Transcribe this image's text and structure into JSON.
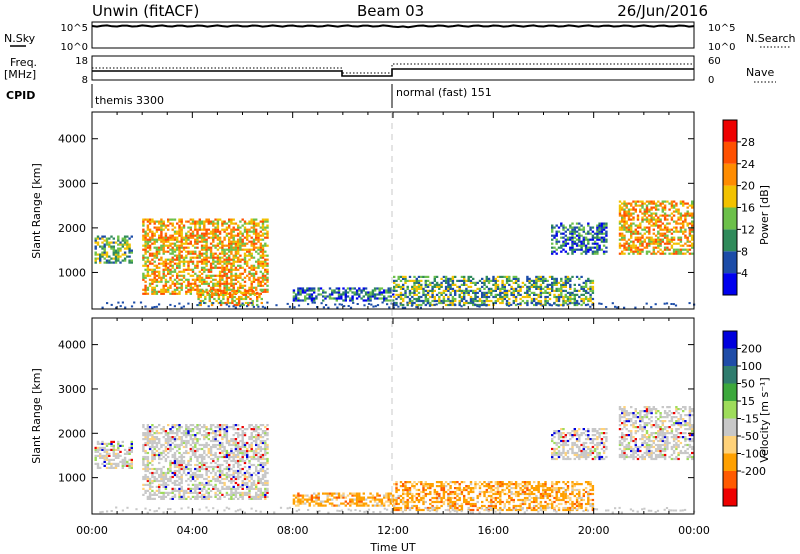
{
  "header": {
    "title": "Unwin (fitACF)",
    "beam": "Beam 03",
    "date": "26/Jun/2016"
  },
  "strip_panels": {
    "nsky_label": "N.Sky",
    "nsearch_label": "N.Search",
    "nsky_ticks": [
      "10^5",
      "10^0"
    ],
    "nsearch_ticks": [
      "10^5",
      "10^0"
    ],
    "freq_label": "Freq.",
    "freq_unit": "[MHz]",
    "freq_ticks": [
      18,
      8
    ],
    "nave_label": "Nave",
    "nave_ticks": [
      60,
      0
    ],
    "cpid_label": "CPID",
    "cpid_segments": [
      {
        "label": "themis 3300",
        "start_hour": 0,
        "end_hour": 12
      },
      {
        "label": "normal (fast) 151",
        "start_hour": 12,
        "end_hour": 24
      }
    ]
  },
  "colors": {
    "power_scale": [
      "#0000ee",
      "#1c4ca8",
      "#2f8a5a",
      "#6cc04a",
      "#f2c200",
      "#ff8c00",
      "#ff5000",
      "#ee0000"
    ],
    "velocity_scale": [
      "#ee0000",
      "#ff5a00",
      "#ffa000",
      "#ffd27a",
      "#c8c8c8",
      "#9edc5a",
      "#3ca83c",
      "#2f7c6e",
      "#1f4ca8",
      "#0000dd"
    ]
  },
  "chart_data": [
    {
      "type": "heatmap",
      "name": "power",
      "xlabel": "",
      "ylabel": "Slant Range [km]",
      "xlim": [
        0,
        24
      ],
      "ylim": [
        180,
        4600
      ],
      "yticks": [
        1000,
        2000,
        3000,
        4000
      ],
      "colorbar": {
        "label": "Power [dB]",
        "ticks": [
          4,
          8,
          12,
          16,
          20,
          24,
          28
        ],
        "range": [
          0,
          32
        ]
      },
      "echo_regions": [
        {
          "t0": 0.1,
          "t1": 1.6,
          "r0": 1200,
          "r1": 1800,
          "level": "mid"
        },
        {
          "t0": 2.0,
          "t1": 7.0,
          "r0": 500,
          "r1": 2200,
          "level": "high"
        },
        {
          "t0": 4.2,
          "t1": 6.8,
          "r0": 250,
          "r1": 600,
          "level": "high"
        },
        {
          "t0": 8.0,
          "t1": 12.0,
          "r0": 350,
          "r1": 650,
          "level": "low"
        },
        {
          "t0": 12.0,
          "t1": 20.0,
          "r0": 250,
          "r1": 900,
          "level": "mid"
        },
        {
          "t0": 18.3,
          "t1": 20.5,
          "r0": 1400,
          "r1": 2100,
          "level": "low"
        },
        {
          "t0": 21.0,
          "t1": 23.9,
          "r0": 1400,
          "r1": 2600,
          "level": "high"
        }
      ]
    },
    {
      "type": "heatmap",
      "name": "velocity",
      "xlabel": "Time UT",
      "ylabel": "Slant Range [km]",
      "xlim": [
        0,
        24
      ],
      "ylim": [
        180,
        4600
      ],
      "xticks": [
        "00:00",
        "04:00",
        "08:00",
        "12:00",
        "16:00",
        "20:00",
        "00:00"
      ],
      "yticks": [
        1000,
        2000,
        3000,
        4000
      ],
      "colorbar": {
        "label": "Velocity [m s⁻¹]",
        "ticks": [
          "200",
          "100",
          "50",
          "15",
          "-15",
          "-50",
          "-100",
          "-200"
        ]
      },
      "echo_regions": [
        {
          "t0": 0.1,
          "t1": 1.6,
          "r0": 1200,
          "r1": 1800,
          "level": "zero"
        },
        {
          "t0": 2.0,
          "t1": 7.0,
          "r0": 500,
          "r1": 2200,
          "level": "zero"
        },
        {
          "t0": 8.0,
          "t1": 12.0,
          "r0": 350,
          "r1": 650,
          "level": "neg"
        },
        {
          "t0": 12.0,
          "t1": 20.0,
          "r0": 250,
          "r1": 900,
          "level": "neg"
        },
        {
          "t0": 18.3,
          "t1": 20.5,
          "r0": 1400,
          "r1": 2100,
          "level": "zero"
        },
        {
          "t0": 21.0,
          "t1": 23.9,
          "r0": 1400,
          "r1": 2600,
          "level": "zero"
        }
      ]
    }
  ]
}
